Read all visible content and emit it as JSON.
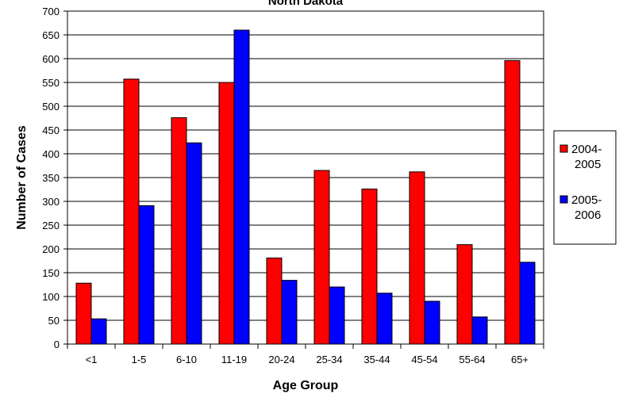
{
  "chart_data": {
    "type": "bar",
    "title": "North Dakota",
    "xlabel": "Age Group",
    "ylabel": "Number of Cases",
    "ylim": [
      0,
      700
    ],
    "ytick_step": 50,
    "grid": true,
    "legend_position": "right",
    "categories": [
      "<1",
      "1-5",
      "6-10",
      "11-19",
      "20-24",
      "25-34",
      "35-44",
      "45-54",
      "55-64",
      "65+"
    ],
    "series": [
      {
        "name_lines": [
          "2004-",
          "2005"
        ],
        "color": "#ff0000",
        "values": [
          128,
          557,
          476,
          550,
          181,
          365,
          326,
          362,
          209,
          596
        ]
      },
      {
        "name_lines": [
          "2005-",
          "2006"
        ],
        "color": "#0000ff",
        "values": [
          53,
          291,
          423,
          660,
          134,
          120,
          107,
          90,
          57,
          172
        ]
      }
    ]
  }
}
